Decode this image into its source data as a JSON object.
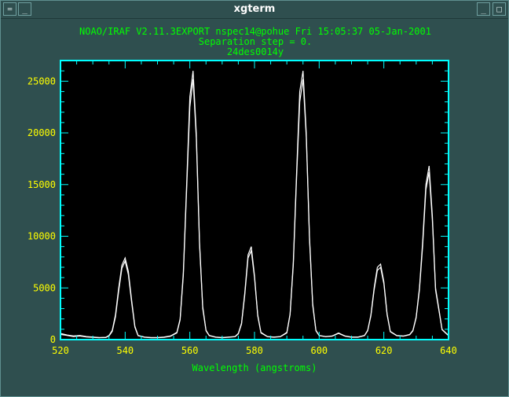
{
  "window": {
    "title": "xgterm",
    "menu_button_glyph": "=",
    "minimize_glyph": "_",
    "maximize_glyph": "□"
  },
  "colors": {
    "window_bg": "#2f4f4f",
    "plot_bg": "#000000",
    "frame": "#00ffff",
    "text": "#ffff00",
    "header_text": "#00ff00",
    "trace": "#ffffff"
  },
  "header": {
    "line1": "NOAO/IRAF V2.11.3EXPORT nspec14@pohue Fri 15:05:37 05-Jan-2001",
    "line2": "Separation step = 0.",
    "line3": "24des0014y"
  },
  "chart_data": {
    "type": "line",
    "xlabel": "Wavelength (angstroms)",
    "ylabel": "",
    "xlim": [
      520,
      640
    ],
    "ylim": [
      0,
      27000
    ],
    "xticks": [
      520,
      540,
      560,
      580,
      600,
      620,
      640
    ],
    "yticks": [
      0,
      5000,
      10000,
      15000,
      20000,
      25000
    ],
    "grid": false,
    "series": [
      {
        "x": [
          520,
          522,
          524,
          526,
          528,
          530,
          532,
          534,
          535,
          536,
          537,
          538,
          539,
          540,
          541,
          542,
          543,
          544,
          546,
          548,
          550,
          552,
          554,
          556,
          557,
          558,
          559,
          560,
          561,
          562,
          563,
          564,
          565,
          566,
          568,
          570,
          572,
          574,
          575,
          576,
          577,
          578,
          579,
          580,
          581,
          582,
          584,
          586,
          588,
          590,
          591,
          592,
          593,
          594,
          595,
          596,
          597,
          598,
          599,
          600,
          602,
          604,
          606,
          608,
          610,
          612,
          614,
          615,
          616,
          617,
          618,
          619,
          620,
          621,
          622,
          624,
          626,
          628,
          629,
          630,
          631,
          632,
          633,
          634,
          635,
          636,
          638,
          640
        ],
        "y": [
          600,
          450,
          350,
          400,
          300,
          250,
          200,
          220,
          400,
          900,
          2400,
          5000,
          7200,
          7900,
          6600,
          3800,
          1300,
          400,
          250,
          200,
          200,
          250,
          350,
          700,
          2000,
          6500,
          15000,
          23500,
          26000,
          20000,
          9500,
          3200,
          900,
          400,
          250,
          200,
          250,
          300,
          600,
          1600,
          4500,
          8200,
          9000,
          6200,
          2400,
          700,
          300,
          250,
          300,
          700,
          2500,
          7500,
          16000,
          24000,
          26000,
          20000,
          10000,
          3500,
          900,
          400,
          300,
          350,
          650,
          350,
          250,
          250,
          400,
          900,
          2400,
          5000,
          7000,
          7300,
          5600,
          2500,
          800,
          400,
          350,
          500,
          900,
          2200,
          5000,
          9500,
          15000,
          16800,
          12000,
          5000,
          1000,
          400
        ]
      },
      {
        "x": [
          520,
          522,
          524,
          526,
          528,
          530,
          532,
          534,
          535,
          536,
          537,
          538,
          539,
          540,
          541,
          542,
          543,
          544,
          546,
          548,
          550,
          552,
          554,
          556,
          557,
          558,
          559,
          560,
          561,
          562,
          563,
          564,
          565,
          566,
          568,
          570,
          572,
          574,
          575,
          576,
          577,
          578,
          579,
          580,
          581,
          582,
          584,
          586,
          588,
          590,
          591,
          592,
          593,
          594,
          595,
          596,
          597,
          598,
          599,
          600,
          602,
          604,
          606,
          608,
          610,
          612,
          614,
          615,
          616,
          617,
          618,
          619,
          620,
          621,
          622,
          624,
          626,
          628,
          629,
          630,
          631,
          632,
          633,
          634,
          635,
          636,
          638,
          640
        ],
        "y": [
          500,
          400,
          300,
          350,
          250,
          220,
          180,
          200,
          350,
          800,
          2200,
          4700,
          6900,
          7600,
          6300,
          3600,
          1200,
          380,
          230,
          180,
          180,
          220,
          320,
          650,
          1900,
          6200,
          14500,
          22500,
          25200,
          19500,
          9200,
          3000,
          850,
          380,
          230,
          180,
          230,
          280,
          550,
          1500,
          4300,
          7900,
          8600,
          6000,
          2300,
          650,
          280,
          230,
          280,
          650,
          2400,
          7200,
          15500,
          23000,
          25200,
          19600,
          9700,
          3300,
          850,
          380,
          280,
          330,
          600,
          330,
          230,
          230,
          380,
          850,
          2300,
          4800,
          6700,
          7000,
          5400,
          2400,
          760,
          380,
          330,
          470,
          850,
          2100,
          4800,
          9100,
          14500,
          16200,
          11600,
          4800,
          950,
          380
        ]
      }
    ]
  }
}
